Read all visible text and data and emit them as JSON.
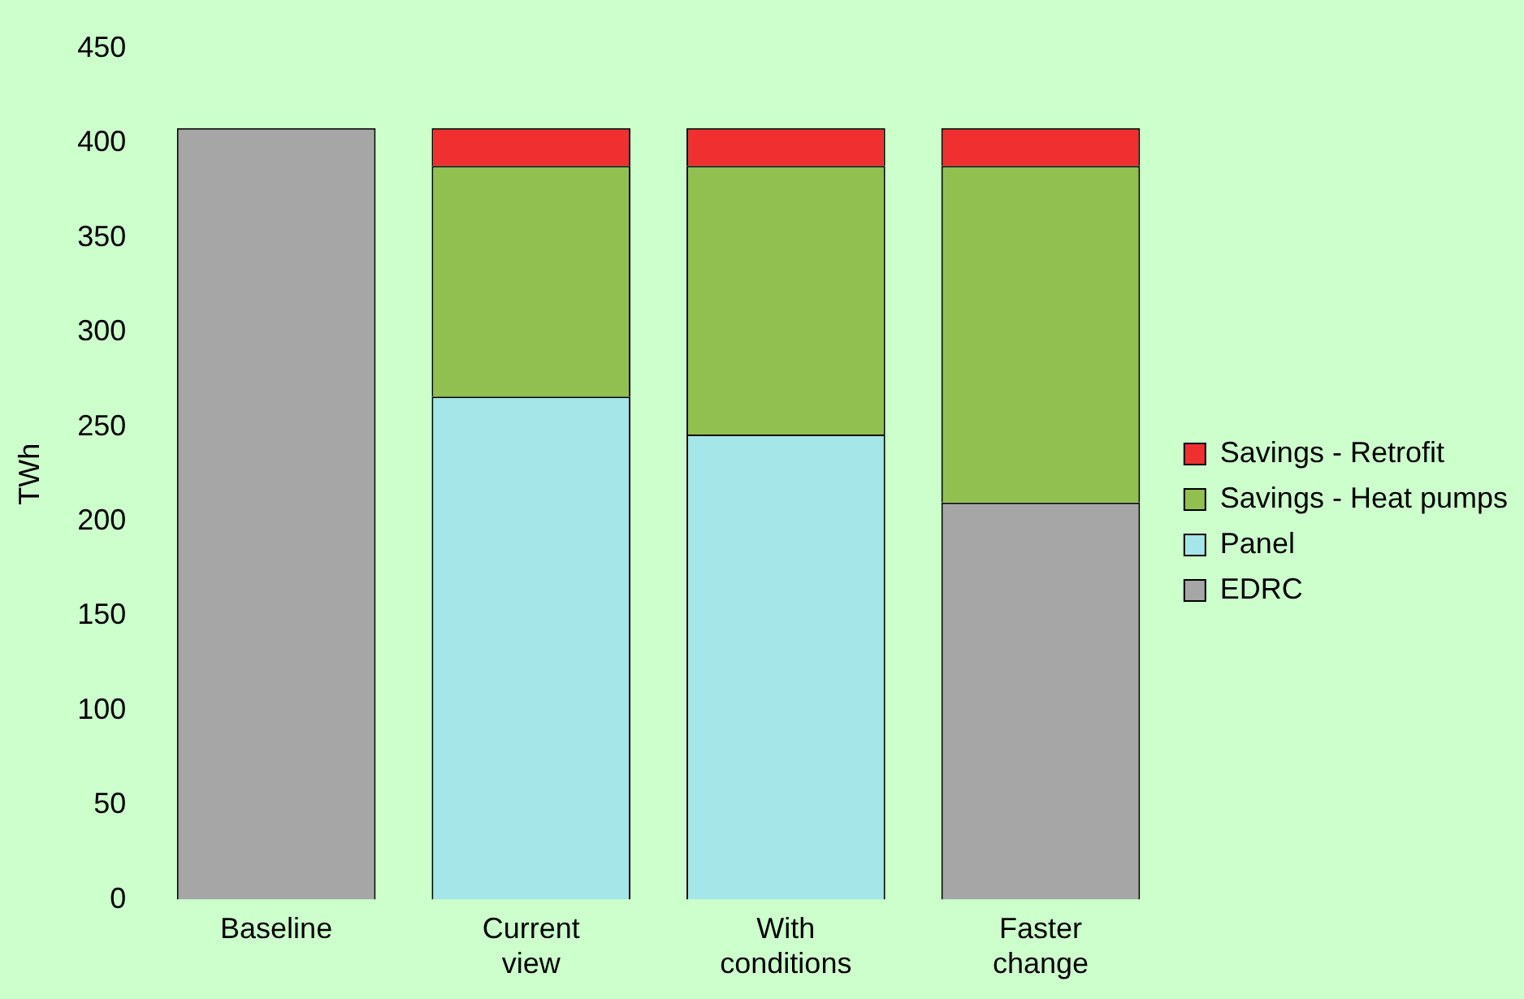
{
  "chart_data": {
    "type": "bar",
    "stacked": true,
    "ylabel": "TWh",
    "categories": [
      "Baseline",
      "Current view",
      "With conditions",
      "Faster change"
    ],
    "series": [
      {
        "name": "EDRC",
        "color": "#a6a6a6",
        "values": [
          408,
          null,
          null,
          210
        ]
      },
      {
        "name": "Panel",
        "color": "#a5e6e8",
        "values": [
          null,
          266,
          246,
          null
        ]
      },
      {
        "name": "Savings - Heat pumps",
        "color": "#92c050",
        "values": [
          null,
          122,
          142,
          178
        ]
      },
      {
        "name": "Savings - Retrofit",
        "color": "#f03030",
        "values": [
          null,
          20,
          20,
          20
        ]
      }
    ],
    "ylim": [
      0,
      450
    ],
    "yticks": [
      0,
      50,
      100,
      150,
      200,
      250,
      300,
      350,
      400,
      450
    ],
    "grid": false,
    "legend": "right"
  }
}
